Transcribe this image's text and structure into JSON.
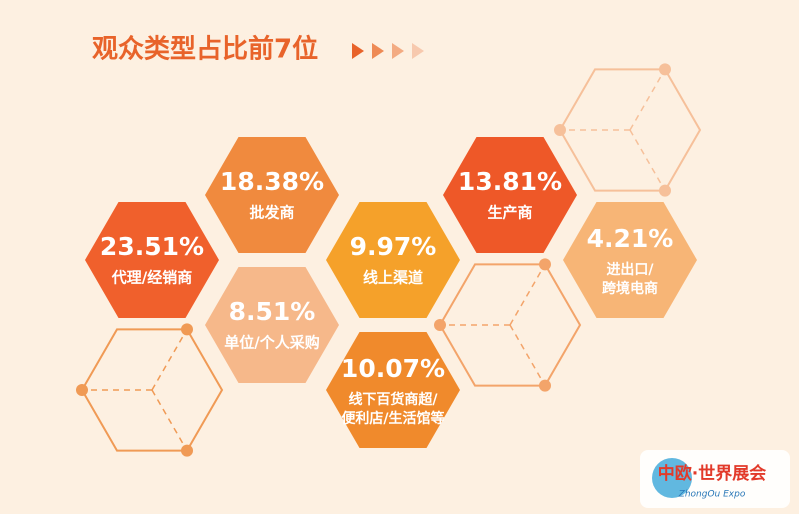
{
  "title": "观众类型占比前7位",
  "items": [
    {
      "value": "23.51%",
      "lines": [
        "代理/经销商"
      ],
      "color": "#f0602c"
    },
    {
      "value": "18.38%",
      "lines": [
        "批发商"
      ],
      "color": "#f08a3e"
    },
    {
      "value": "8.51%",
      "lines": [
        "单位/个人采购"
      ],
      "color": "#f6b88a"
    },
    {
      "value": "9.97%",
      "lines": [
        "线上渠道"
      ],
      "color": "#f5a12a"
    },
    {
      "value": "10.07%",
      "lines": [
        "线下百货商超/",
        "便利店/生活馆等"
      ],
      "color": "#f08a2c"
    },
    {
      "value": "13.81%",
      "lines": [
        "生产商"
      ],
      "color": "#ee5828"
    },
    {
      "value": "4.21%",
      "lines": [
        "进出口/",
        "跨境电商"
      ],
      "color": "#f7b576"
    }
  ],
  "logo": {
    "name": "中欧·世界展会",
    "sub": "ZhongOu Expo"
  }
}
